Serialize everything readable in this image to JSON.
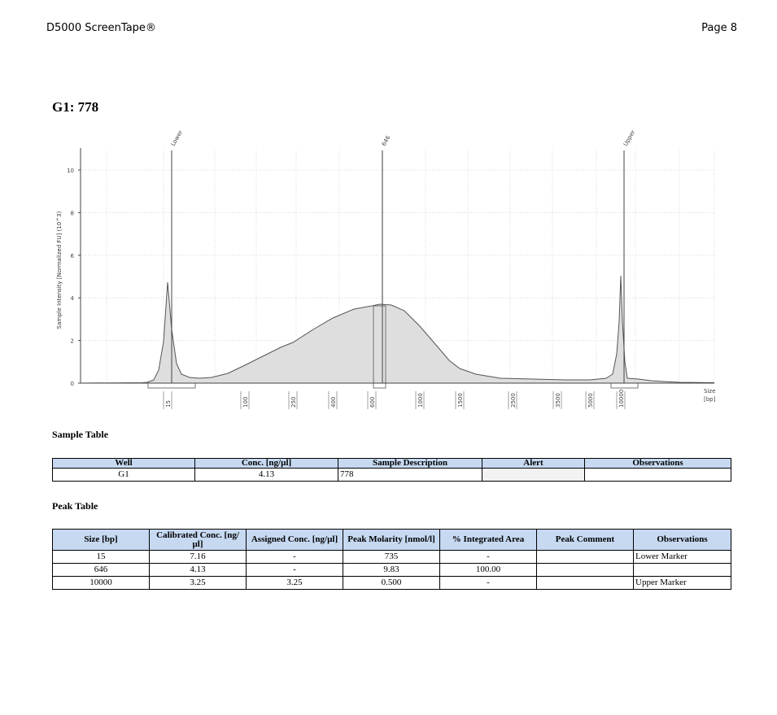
{
  "header": {
    "left": "D5000 ScreenTape®",
    "right": "Page 8"
  },
  "sample_title": "G1: 778",
  "chart_data": {
    "type": "line",
    "ylabel": "Sample Intensity [Normalized FU] (10^3)",
    "xlabel": "Size [bp]",
    "ylim": [
      0,
      10.8
    ],
    "y_ticks": [
      "0",
      "2",
      "4",
      "6",
      "8",
      "10"
    ],
    "x_tick_labels": [
      "15",
      "100",
      "250",
      "400",
      "600",
      "1000",
      "1500",
      "2500",
      "3500",
      "5000",
      "10000"
    ],
    "peak_labels": [
      "Lower",
      "646",
      "Upper"
    ],
    "series": [
      {
        "values": [
          {
            "x": "<15",
            "y": 0.0
          },
          {
            "x": "15",
            "y": 4.8
          },
          {
            "x": "100",
            "y": 0.2
          },
          {
            "x": "250",
            "y": 1.7
          },
          {
            "x": "400",
            "y": 2.7
          },
          {
            "x": "600",
            "y": 3.6
          },
          {
            "x": "646",
            "y": 3.7
          },
          {
            "x": "1000",
            "y": 2.9
          },
          {
            "x": "1500",
            "y": 1.1
          },
          {
            "x": "2500",
            "y": 0.2
          },
          {
            "x": "5000",
            "y": 0.1
          },
          {
            "x": "10000",
            "y": 5.0
          }
        ]
      }
    ],
    "grid": true
  },
  "sample_table": {
    "title": "Sample Table",
    "headers": [
      "Well",
      "Conc. [ng/µl]",
      "Sample Description",
      "Alert",
      "Observations"
    ],
    "rows": [
      [
        "G1",
        "4.13",
        "778",
        "",
        ""
      ]
    ]
  },
  "peak_table": {
    "title": "Peak Table",
    "headers": [
      "Size [bp]",
      "Calibrated Conc. [ng/µl]",
      "Assigned Conc. [ng/µl]",
      "Peak Molarity [nmol/l]",
      "% Integrated Area",
      "Peak Comment",
      "Observations"
    ],
    "rows": [
      [
        "15",
        "7.16",
        "-",
        "735",
        "-",
        "",
        "Lower Marker"
      ],
      [
        "646",
        "4.13",
        "-",
        "9.83",
        "100.00",
        "",
        ""
      ],
      [
        "10000",
        "3.25",
        "3.25",
        "0.500",
        "-",
        "",
        "Upper Marker"
      ]
    ]
  }
}
